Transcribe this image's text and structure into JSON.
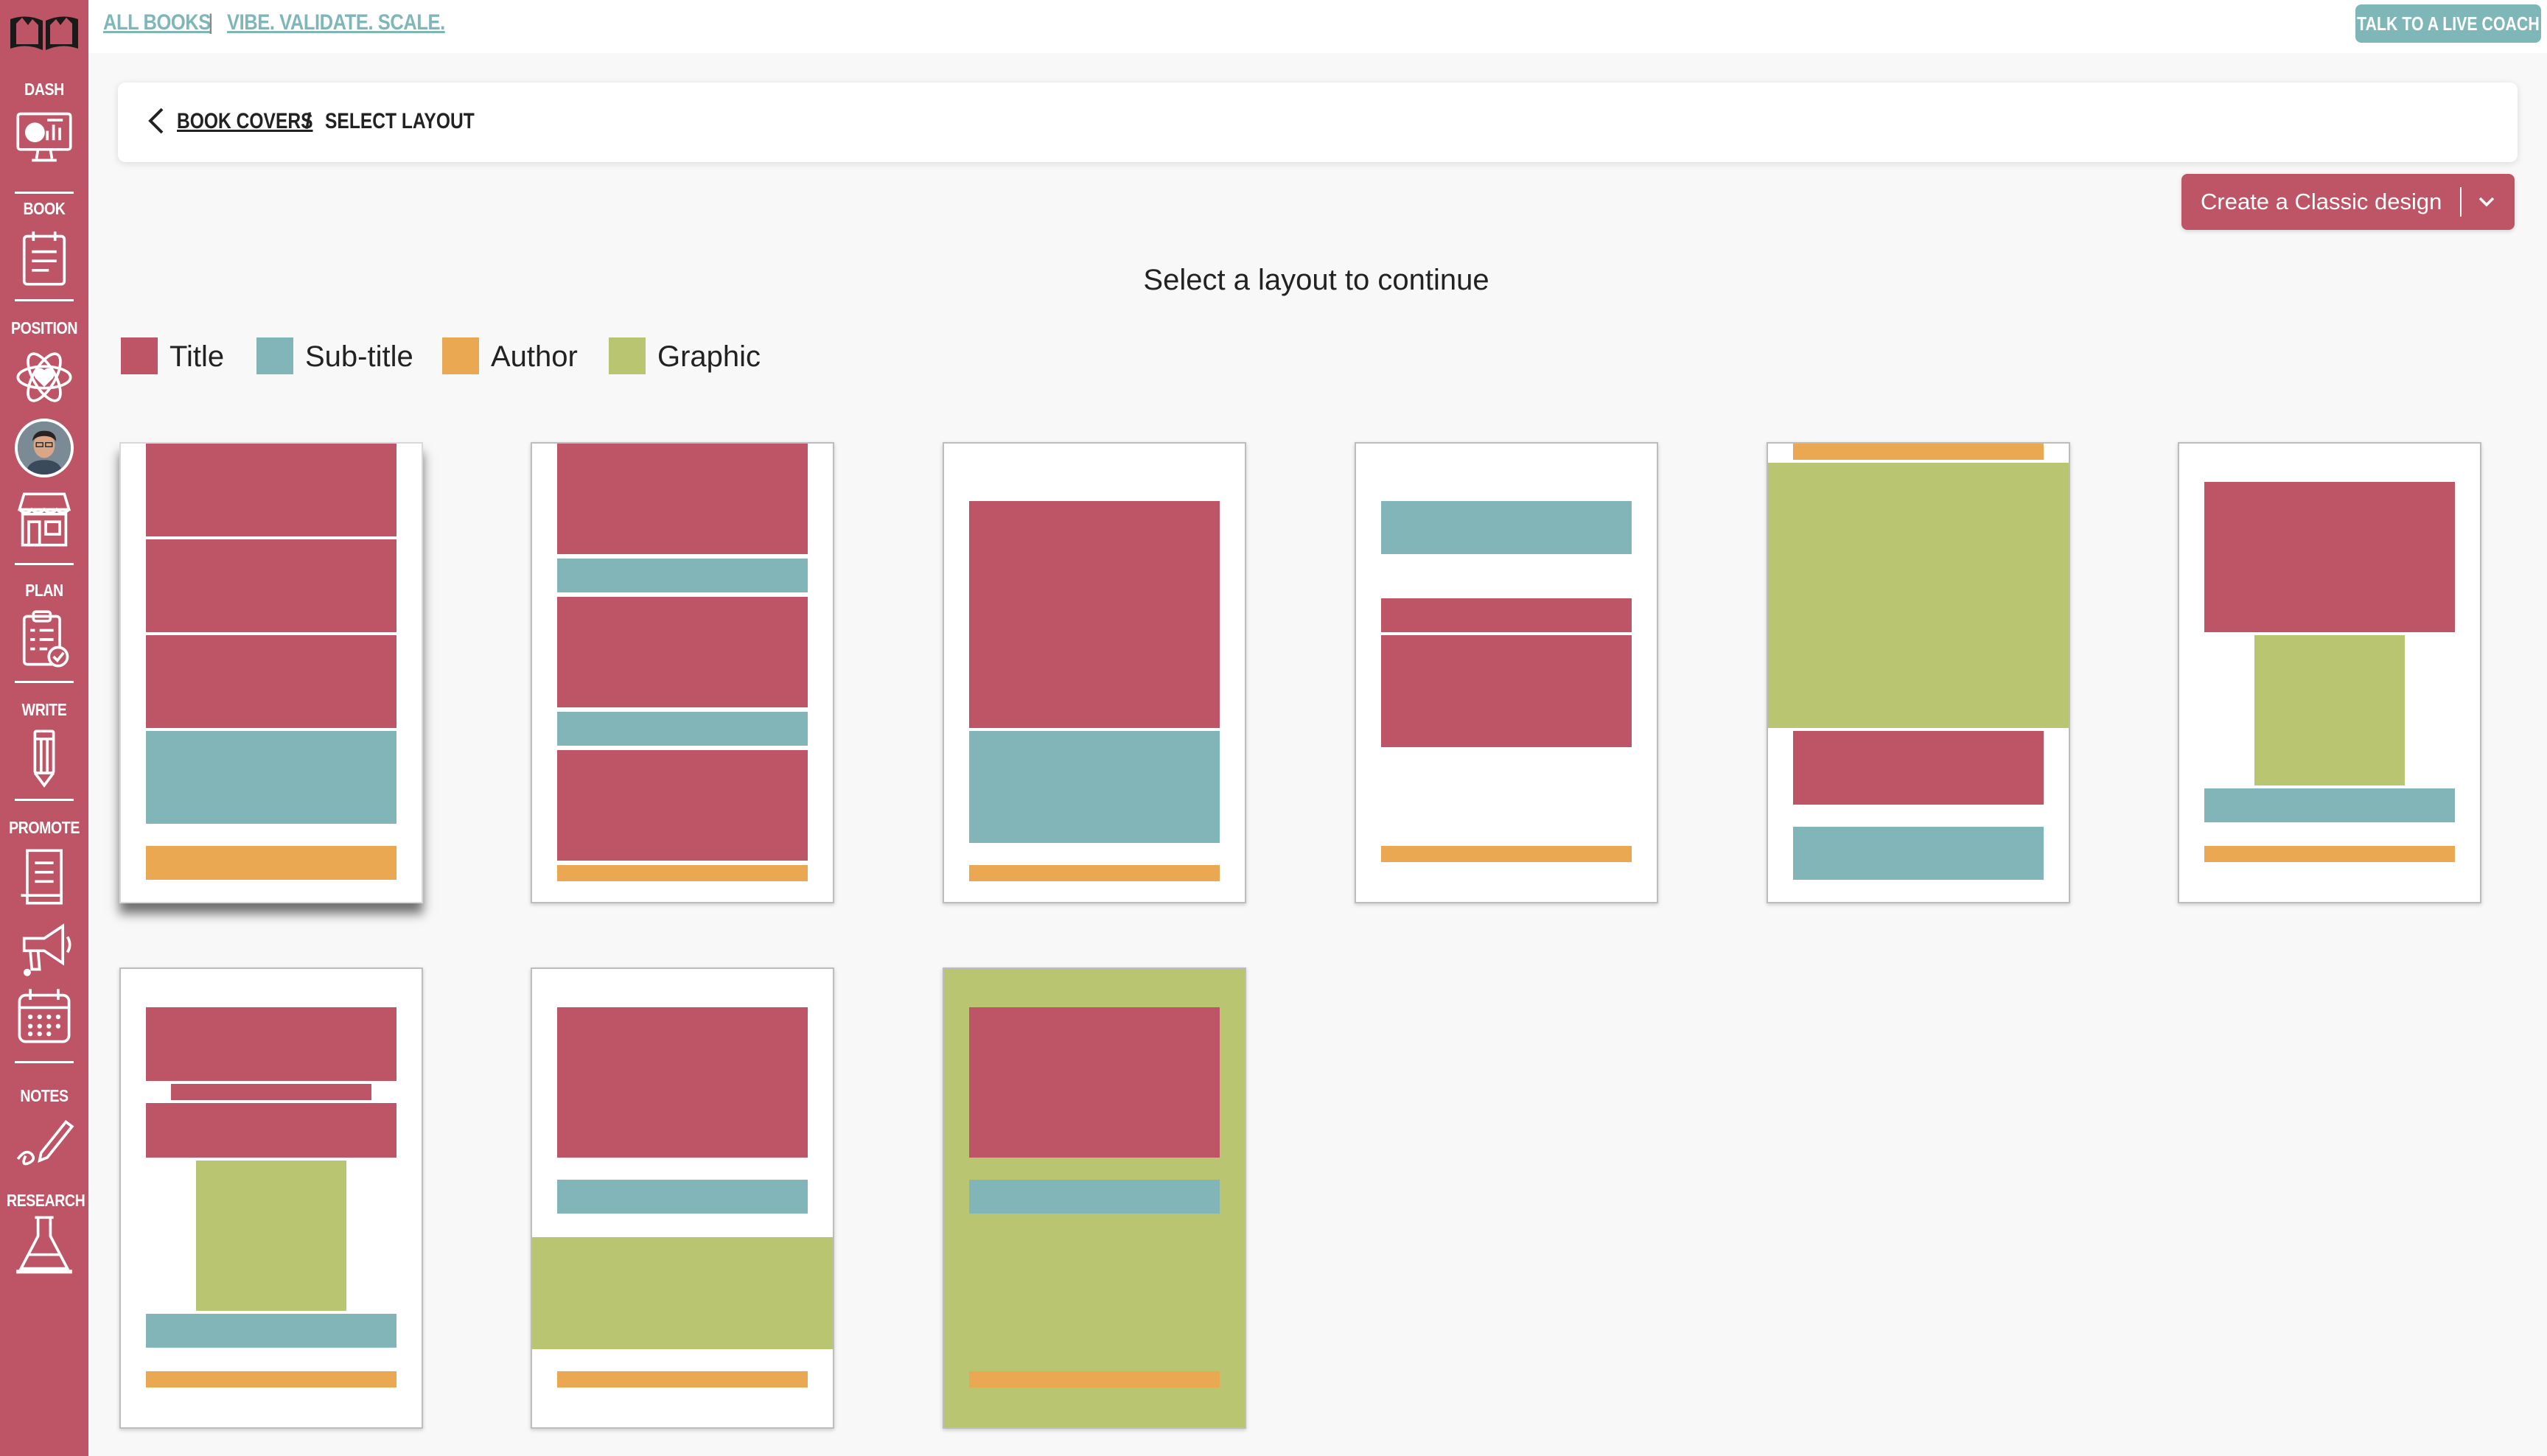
{
  "nav": {
    "all_books": "ALL BOOKS",
    "separator": "|",
    "tagline": "VIBE. VALIDATE. SCALE.",
    "coach_button": "TALK TO A LIVE COACH",
    "account_icon": "user-circle-icon"
  },
  "sidebar": {
    "logo_icon": "open-book-icon",
    "items": [
      {
        "label": "DASH",
        "icon": "dashboard-monitor-icon"
      },
      {
        "label": "BOOK",
        "icon": "notebook-icon"
      },
      {
        "label": "POSITION",
        "icon": "atom-heart-icon"
      },
      {
        "label": "",
        "icon": "avatar"
      },
      {
        "label": "",
        "icon": "storefront-icon"
      },
      {
        "label": "PLAN",
        "icon": "clipboard-check-icon"
      },
      {
        "label": "WRITE",
        "icon": "pencil-icon"
      },
      {
        "label": "PROMOTE",
        "icon": "document-icon"
      },
      {
        "label": "",
        "icon": "megaphone-icon"
      },
      {
        "label": "",
        "icon": "calendar-icon"
      },
      {
        "label": "NOTES",
        "icon": "pen-scribble-icon"
      },
      {
        "label": "RESEARCH",
        "icon": "flask-icon"
      }
    ]
  },
  "breadcrumb": {
    "back_icon": "chevron-left-icon",
    "parent": "BOOK COVERS",
    "separator": "/",
    "current": "SELECT LAYOUT"
  },
  "create_button": {
    "label": "Create a Classic design",
    "icon": "chevron-down-icon"
  },
  "heading": "Select a layout to continue",
  "legend": [
    {
      "label": "Title",
      "color": "#be5566"
    },
    {
      "label": "Sub-title",
      "color": "#82b5b8"
    },
    {
      "label": "Author",
      "color": "#eba852"
    },
    {
      "label": "Graphic",
      "color": "#bac572"
    }
  ],
  "colors": {
    "title": "#be5566",
    "subtitle": "#82b5b8",
    "author": "#eba852",
    "graphic": "#bac572",
    "sidebar": "#be5566",
    "accent_teal": "#7fb6b8"
  },
  "layouts": {
    "count": 9,
    "selected_index": 0
  }
}
